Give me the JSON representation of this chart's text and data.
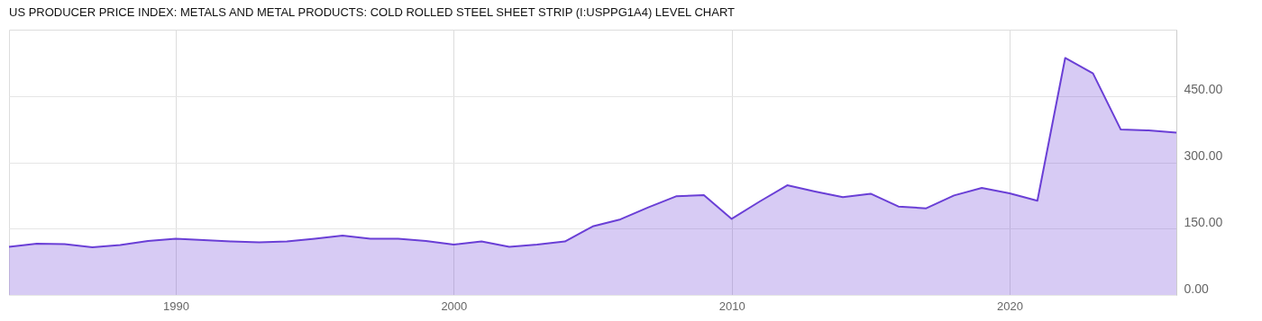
{
  "chart_data": {
    "type": "area",
    "title": "US PRODUCER PRICE INDEX: METALS AND METAL PRODUCTS: COLD ROLLED STEEL SHEET STRIP (I:USPPG1A4) LEVEL CHART",
    "x": [
      1984,
      1985,
      1986,
      1987,
      1988,
      1989,
      1990,
      1991,
      1992,
      1993,
      1994,
      1995,
      1996,
      1997,
      1998,
      1999,
      2000,
      2001,
      2002,
      2003,
      2004,
      2005,
      2006,
      2007,
      2008,
      2009,
      2010,
      2011,
      2012,
      2013,
      2014,
      2015,
      2016,
      2017,
      2018,
      2019,
      2020,
      2021,
      2022,
      2023,
      2024,
      2025,
      2026
    ],
    "series": [
      {
        "color": "#6a3fd6",
        "values": [
          109,
          116,
          115,
          108,
          113,
          122,
          127,
          124,
          121,
          119,
          121,
          127,
          134,
          127,
          127,
          122,
          114,
          121,
          109,
          114,
          121,
          155,
          171,
          198,
          223,
          226,
          172,
          211,
          248,
          234,
          221,
          229,
          200,
          196,
          225,
          242,
          230,
          213,
          536,
          501,
          374,
          372,
          367
        ]
      }
    ],
    "xlim": [
      1984,
      2026
    ],
    "xticks": [
      1990,
      2000,
      2010,
      2020
    ],
    "ylim": [
      0,
      600
    ],
    "yticks": [
      {
        "value": 0,
        "label": "0.00"
      },
      {
        "value": 150,
        "label": "150.00"
      },
      {
        "value": 300,
        "label": "300.00"
      },
      {
        "value": 450,
        "label": "450.00"
      }
    ],
    "grid": true
  }
}
